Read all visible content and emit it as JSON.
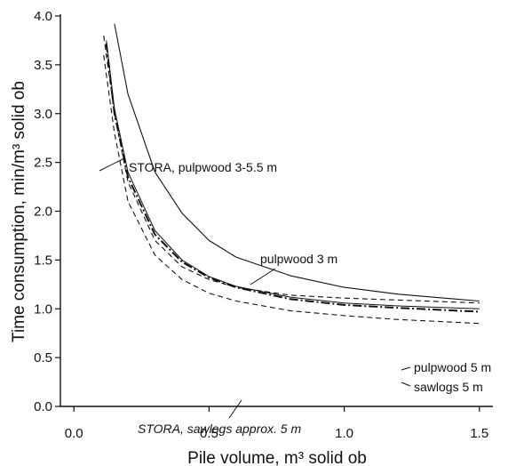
{
  "chart_data": {
    "type": "line",
    "title": "",
    "xlabel": "Pile volume, m³ solid ob",
    "ylabel": "Time consumption, min/m³ solid ob",
    "xlim": [
      -0.05,
      1.55
    ],
    "ylim": [
      0.0,
      4.0
    ],
    "x_ticks": [
      "0.0",
      "0.5",
      "1.0",
      "1.5"
    ],
    "y_ticks": [
      "0.0",
      "0.5",
      "1.0",
      "1.5",
      "2.0",
      "2.5",
      "3.0",
      "3.5",
      "4.0"
    ],
    "grid": false,
    "legend": "none (direct labels)",
    "series": [
      {
        "name": "STORA, pulpwood 3-5.5 m",
        "style": "solid",
        "x": [
          0.15,
          0.2,
          0.3,
          0.4,
          0.5,
          0.6,
          0.8,
          1.0,
          1.2,
          1.5
        ],
        "y": [
          3.92,
          3.2,
          2.4,
          1.98,
          1.7,
          1.53,
          1.34,
          1.22,
          1.15,
          1.08
        ]
      },
      {
        "name": "pulpwood 3",
        "style": "dashed",
        "x": [
          0.11,
          0.15,
          0.2,
          0.3,
          0.4,
          0.5,
          0.6,
          0.8,
          1.0,
          1.2,
          1.5
        ],
        "y": [
          3.8,
          3.0,
          2.3,
          1.7,
          1.43,
          1.3,
          1.22,
          1.14,
          1.11,
          1.09,
          1.06
        ]
      },
      {
        "name": "STORA, sawlogs approx. 5 m",
        "style": "dashed",
        "x": [
          0.11,
          0.15,
          0.2,
          0.3,
          0.4,
          0.5,
          0.6,
          0.8,
          1.0,
          1.2,
          1.5
        ],
        "y": [
          3.6,
          2.8,
          2.1,
          1.55,
          1.3,
          1.16,
          1.08,
          0.98,
          0.93,
          0.89,
          0.85
        ]
      },
      {
        "name": "pulpwood 5 m",
        "style": "thin-solid",
        "x": [
          0.12,
          0.15,
          0.2,
          0.3,
          0.4,
          0.5,
          0.6,
          0.8,
          1.0,
          1.2,
          1.5
        ],
        "y": [
          3.75,
          3.05,
          2.4,
          1.8,
          1.5,
          1.33,
          1.23,
          1.12,
          1.06,
          1.03,
          1.0
        ]
      },
      {
        "name": "sawlogs 5 m",
        "style": "dash-dot",
        "x": [
          0.12,
          0.15,
          0.2,
          0.3,
          0.4,
          0.5,
          0.6,
          0.8,
          1.0,
          1.2,
          1.5
        ],
        "y": [
          3.72,
          3.0,
          2.35,
          1.76,
          1.48,
          1.32,
          1.22,
          1.1,
          1.04,
          1.01,
          0.97
        ]
      }
    ],
    "annotations": [
      {
        "text": "STORA, pulpwood 3-5.5 m",
        "italic": false
      },
      {
        "text": "pulpwood 3 m",
        "italic": false
      },
      {
        "text": "STORA, sawlogs approx. 5 m",
        "italic": true
      },
      {
        "text": "pulpwood 5 m",
        "italic": false
      },
      {
        "text": "sawlogs 5 m",
        "italic": false
      }
    ]
  }
}
